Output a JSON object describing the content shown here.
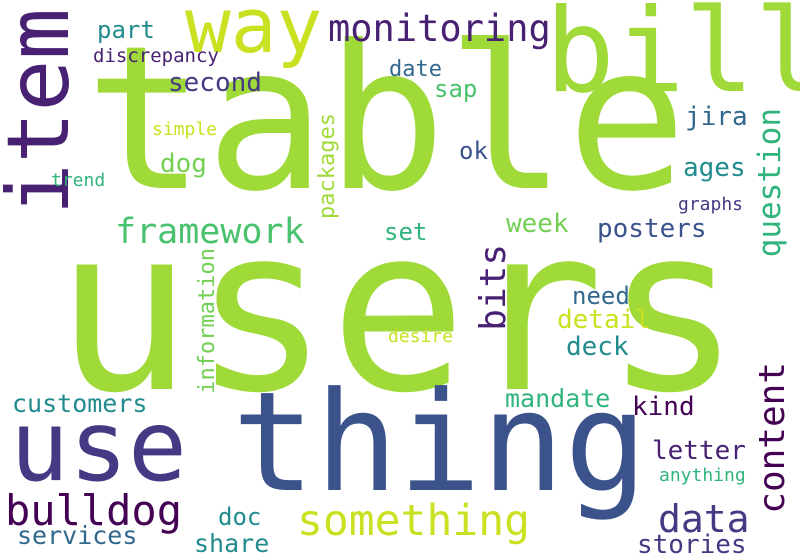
{
  "colors": {
    "background": "#ffffff",
    "yellow_green": "#a0da39",
    "light_green": "#74d055",
    "yellow": "#c9e120",
    "green": "#4ac16d",
    "teal_green": "#2fb47c",
    "teal": "#228b8d",
    "steel_blue": "#31688e",
    "blue": "#3b528b",
    "indigo": "#443983",
    "purple": "#482173",
    "dark_purple": "#440154"
  },
  "words": {
    "users": "users",
    "table": "table",
    "thing": "thing",
    "use": "use",
    "bill": "bill",
    "item": "item",
    "way": "way",
    "something": "something",
    "bulldog": "bulldog",
    "framework": "framework",
    "monitoring": "monitoring",
    "content": "content",
    "question": "question",
    "data": "data",
    "bits": "bits",
    "customers": "customers",
    "information": "information",
    "packages": "packages",
    "services": "services",
    "posters": "posters",
    "letter": "letter",
    "stories": "stories",
    "mandate": "mandate",
    "second": "second",
    "detail": "detail",
    "deck": "deck",
    "share": "share",
    "need": "need",
    "week": "week",
    "ages": "ages",
    "kind": "kind",
    "jira": "jira",
    "part": "part",
    "date": "date",
    "sap": "sap",
    "dog": "dog",
    "doc": "doc",
    "set": "set",
    "ok": "ok",
    "discrepancy": "discrepancy",
    "graphs": "graphs",
    "anything": "anything",
    "desire": "desire",
    "simple": "simple",
    "trend": "trend"
  }
}
